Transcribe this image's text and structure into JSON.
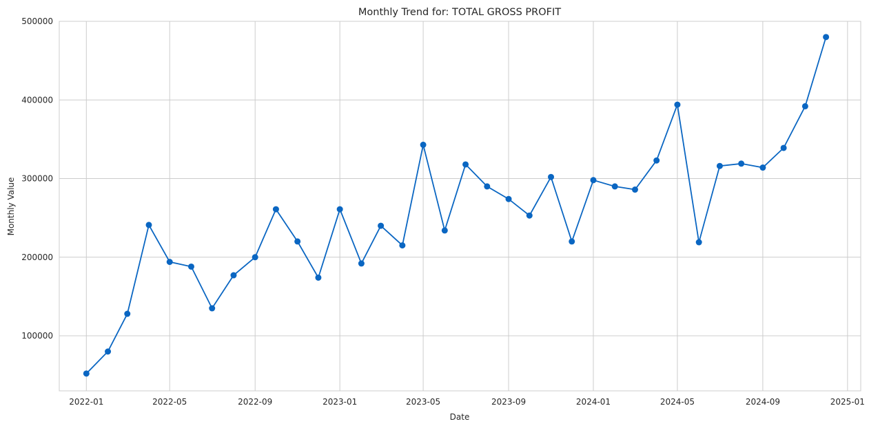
{
  "chart_data": {
    "type": "line",
    "title": "Monthly Trend for: TOTAL GROSS PROFIT",
    "xlabel": "Date",
    "ylabel": "Monthly Value",
    "xlim": [
      "2021-11-23",
      "2025-01-20"
    ],
    "ylim": [
      30000,
      500000
    ],
    "x_ticks": [
      "2022-01",
      "2022-05",
      "2022-09",
      "2023-01",
      "2023-05",
      "2023-09",
      "2024-01",
      "2024-05",
      "2024-09",
      "2025-01"
    ],
    "y_ticks": [
      100000,
      200000,
      300000,
      400000,
      500000
    ],
    "grid": true,
    "color": "#0a66c2",
    "x": [
      "2022-01-01",
      "2022-02-01",
      "2022-03-01",
      "2022-04-01",
      "2022-05-01",
      "2022-06-01",
      "2022-07-01",
      "2022-08-01",
      "2022-09-01",
      "2022-10-01",
      "2022-11-01",
      "2022-12-01",
      "2023-01-01",
      "2023-02-01",
      "2023-03-01",
      "2023-04-01",
      "2023-05-01",
      "2023-06-01",
      "2023-07-01",
      "2023-08-01",
      "2023-09-01",
      "2023-10-01",
      "2023-11-01",
      "2023-12-01",
      "2024-01-01",
      "2024-02-01",
      "2024-03-01",
      "2024-04-01",
      "2024-05-01",
      "2024-06-01",
      "2024-07-01",
      "2024-08-01",
      "2024-09-01",
      "2024-10-01",
      "2024-11-01",
      "2024-12-01"
    ],
    "values": [
      52000,
      80000,
      128000,
      241000,
      194000,
      188000,
      135000,
      177000,
      200000,
      261000,
      220000,
      174000,
      261000,
      192000,
      240000,
      215000,
      343000,
      234000,
      318000,
      290000,
      274000,
      253000,
      302000,
      220000,
      298000,
      290000,
      286000,
      323000,
      394000,
      219000,
      316000,
      319000,
      314000,
      339000,
      392000,
      480000
    ]
  }
}
